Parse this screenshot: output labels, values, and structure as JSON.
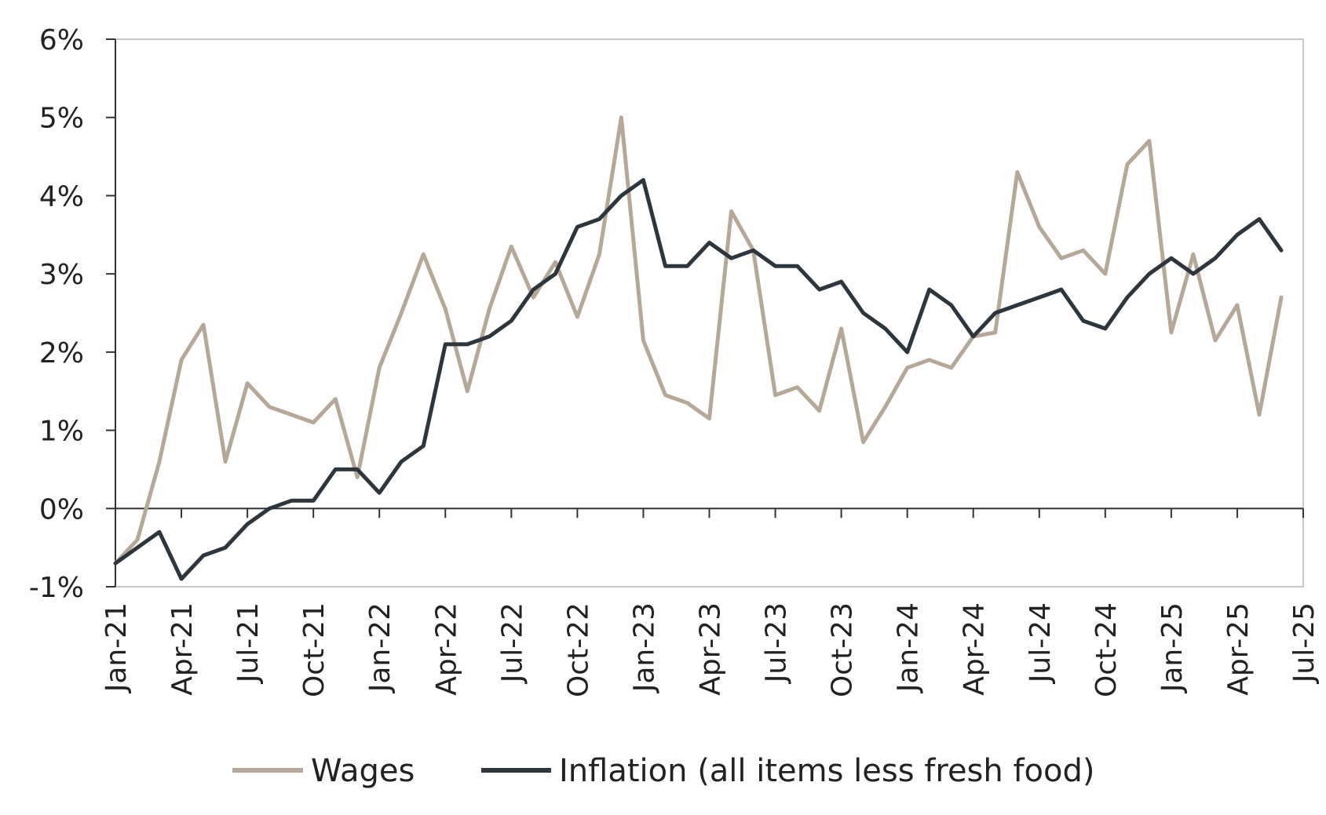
{
  "chart_data": {
    "type": "line",
    "title": "",
    "xlabel": "",
    "ylabel": "",
    "ylim": [
      -1,
      6
    ],
    "yticks": [
      "-1%",
      "0%",
      "1%",
      "2%",
      "3%",
      "4%",
      "5%",
      "6%"
    ],
    "ytick_values": [
      -1,
      0,
      1,
      2,
      3,
      4,
      5,
      6
    ],
    "xlim": [
      "Jan-21",
      "Jul-25"
    ],
    "xticks": [
      "Jan-21",
      "Apr-21",
      "Jul-21",
      "Oct-21",
      "Jan-22",
      "Apr-22",
      "Jul-22",
      "Oct-22",
      "Jan-23",
      "Apr-23",
      "Jul-23",
      "Oct-23",
      "Jan-24",
      "Apr-24",
      "Jul-24",
      "Oct-24",
      "Jan-25",
      "Apr-25",
      "Jul-25"
    ],
    "grid": false,
    "legend_position": "bottom",
    "x": [
      "Jan-21",
      "Feb-21",
      "Mar-21",
      "Apr-21",
      "May-21",
      "Jun-21",
      "Jul-21",
      "Aug-21",
      "Sep-21",
      "Oct-21",
      "Nov-21",
      "Dec-21",
      "Jan-22",
      "Feb-22",
      "Mar-22",
      "Apr-22",
      "May-22",
      "Jun-22",
      "Jul-22",
      "Aug-22",
      "Sep-22",
      "Oct-22",
      "Nov-22",
      "Dec-22",
      "Jan-23",
      "Feb-23",
      "Mar-23",
      "Apr-23",
      "May-23",
      "Jun-23",
      "Jul-23",
      "Aug-23",
      "Sep-23",
      "Oct-23",
      "Nov-23",
      "Dec-23",
      "Jan-24",
      "Feb-24",
      "Mar-24",
      "Apr-24",
      "May-24",
      "Jun-24",
      "Jul-24",
      "Aug-24",
      "Sep-24",
      "Oct-24",
      "Nov-24",
      "Dec-24",
      "Jan-25",
      "Feb-25",
      "Mar-25",
      "Apr-25",
      "May-25",
      "Jun-25"
    ],
    "series": [
      {
        "name": "Wages",
        "color": "#b5a896",
        "values": [
          -0.7,
          -0.4,
          0.6,
          1.9,
          2.35,
          0.6,
          1.6,
          1.3,
          1.2,
          1.1,
          1.4,
          0.4,
          1.8,
          2.5,
          3.25,
          2.55,
          1.5,
          2.55,
          3.35,
          2.7,
          3.15,
          2.45,
          3.25,
          5.0,
          2.15,
          1.45,
          1.35,
          1.15,
          3.8,
          3.3,
          1.45,
          1.55,
          1.25,
          2.3,
          0.85,
          1.3,
          1.8,
          1.9,
          1.8,
          2.2,
          2.25,
          4.3,
          3.6,
          3.2,
          3.3,
          3.0,
          4.4,
          4.7,
          2.25,
          3.25,
          2.15,
          2.6,
          1.2,
          2.7
        ]
      },
      {
        "name": "Inflation (all items less fresh food)",
        "color": "#2e363d",
        "values": [
          -0.7,
          -0.5,
          -0.3,
          -0.9,
          -0.6,
          -0.5,
          -0.2,
          0.0,
          0.1,
          0.1,
          0.5,
          0.5,
          0.2,
          0.6,
          0.8,
          2.1,
          2.1,
          2.2,
          2.4,
          2.8,
          3.0,
          3.6,
          3.7,
          4.0,
          4.2,
          3.1,
          3.1,
          3.4,
          3.2,
          3.3,
          3.1,
          3.1,
          2.8,
          2.9,
          2.5,
          2.3,
          2.0,
          2.8,
          2.6,
          2.2,
          2.5,
          2.6,
          2.7,
          2.8,
          2.4,
          2.3,
          2.7,
          3.0,
          3.2,
          3.0,
          3.2,
          3.5,
          3.7,
          3.3
        ]
      }
    ]
  }
}
